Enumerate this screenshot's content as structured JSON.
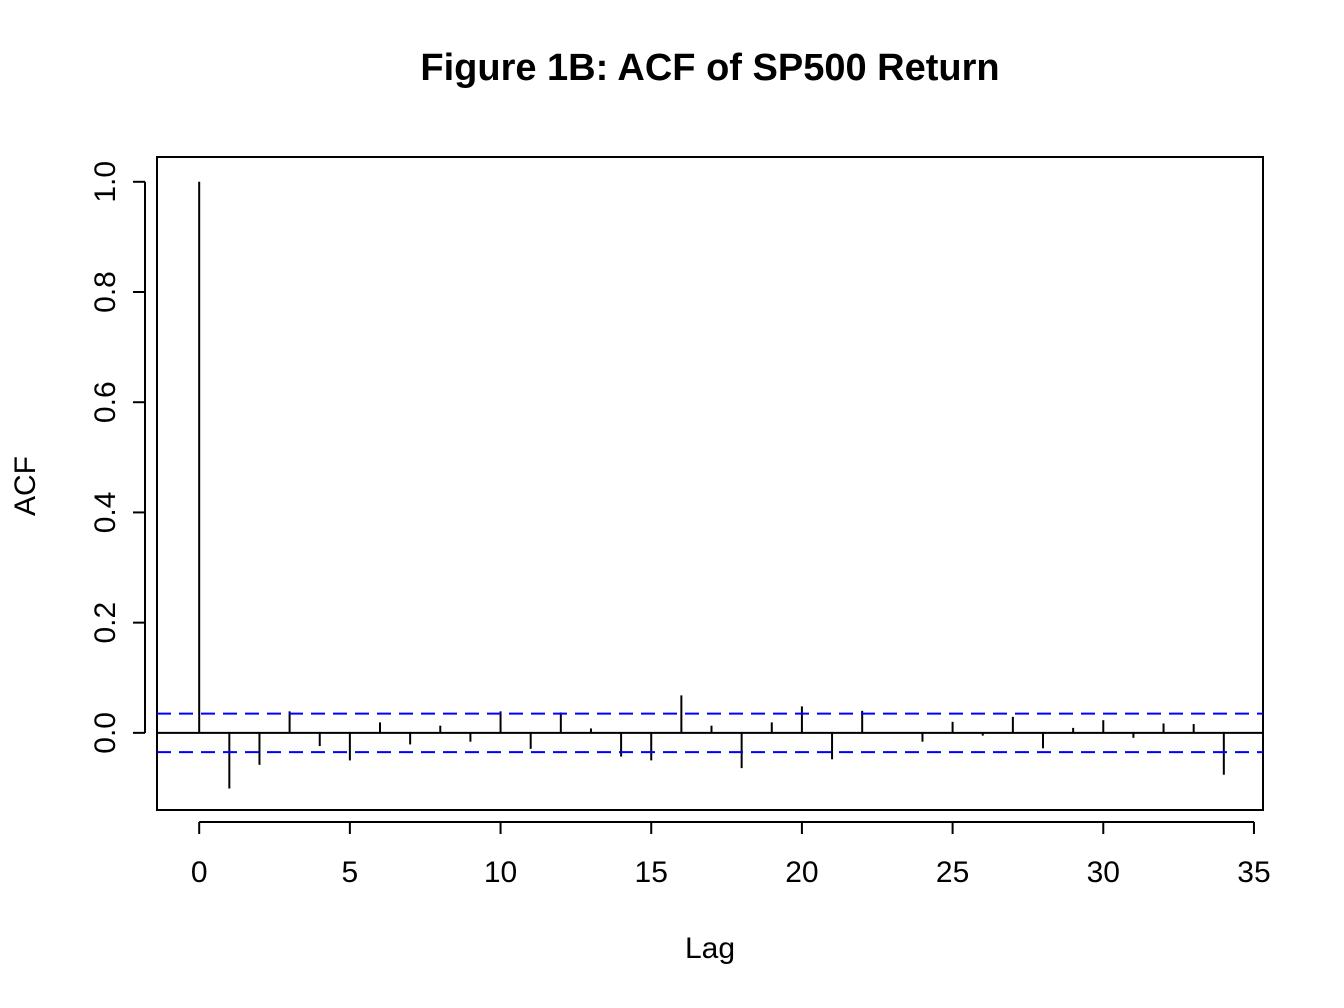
{
  "chart_data": {
    "type": "bar",
    "title": "Figure 1B: ACF of SP500 Return",
    "xlabel": "Lag",
    "ylabel": "ACF",
    "xlim": [
      -1.4,
      35.3
    ],
    "ylim": [
      -0.14,
      1.045
    ],
    "x_ticks": [
      0,
      5,
      10,
      15,
      20,
      25,
      30,
      35
    ],
    "x_tick_labels": [
      "0",
      "5",
      "10",
      "15",
      "20",
      "25",
      "30",
      "35"
    ],
    "y_ticks": [
      0.0,
      0.2,
      0.4,
      0.6,
      0.8,
      1.0
    ],
    "y_tick_labels": [
      "0.0",
      "0.2",
      "0.4",
      "0.6",
      "0.8",
      "1.0"
    ],
    "x": [
      0,
      1,
      2,
      3,
      4,
      5,
      6,
      7,
      8,
      9,
      10,
      11,
      12,
      13,
      14,
      15,
      16,
      17,
      18,
      19,
      20,
      21,
      22,
      23,
      24,
      25,
      26,
      27,
      28,
      29,
      30,
      31,
      32,
      33,
      34
    ],
    "values": [
      1.0,
      -0.101,
      -0.058,
      0.039,
      -0.024,
      -0.05,
      0.019,
      -0.021,
      0.013,
      -0.016,
      0.039,
      -0.029,
      0.037,
      0.008,
      -0.043,
      -0.05,
      0.068,
      0.013,
      -0.064,
      0.019,
      0.048,
      -0.048,
      0.04,
      0.0,
      -0.016,
      0.02,
      -0.005,
      0.029,
      -0.028,
      0.009,
      0.023,
      -0.009,
      0.017,
      0.016,
      -0.076
    ],
    "confidence_bound": 0.035,
    "grid": false,
    "colors": {
      "bars": "#000000",
      "confidence": "#0000ff",
      "frame": "#000000"
    }
  }
}
